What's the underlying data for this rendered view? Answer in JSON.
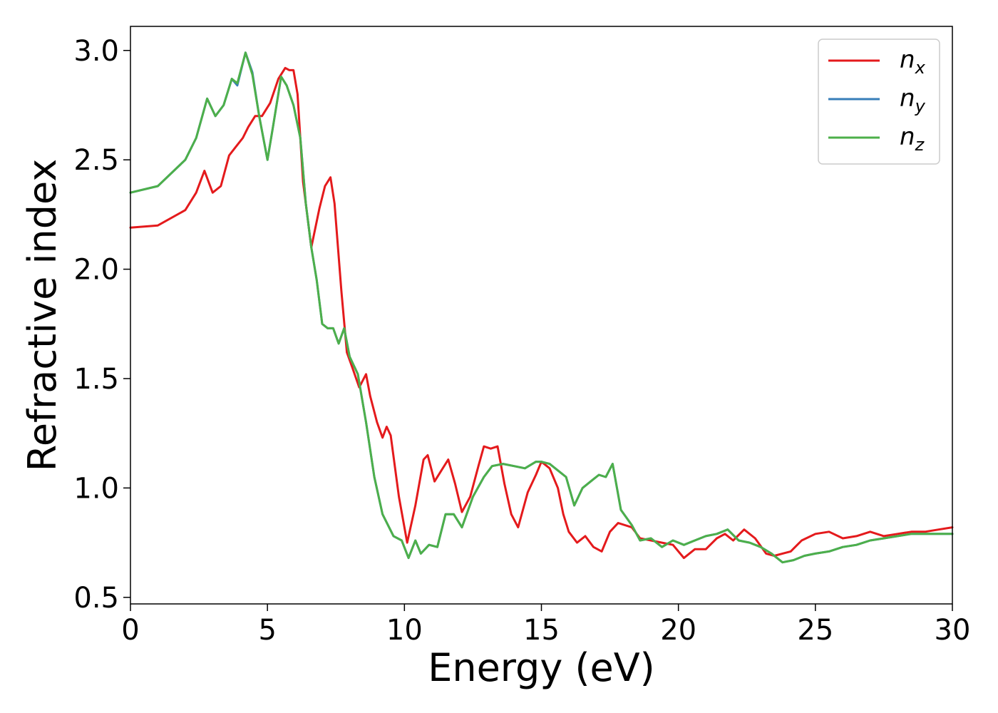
{
  "chart_data": {
    "type": "line",
    "title": "",
    "xlabel": "Energy (eV)",
    "ylabel": "Refractive index",
    "xlim": [
      0,
      30
    ],
    "ylim": [
      0.47,
      3.11
    ],
    "xticks": [
      0,
      5,
      10,
      15,
      20,
      25,
      30
    ],
    "xtick_labels": [
      "0",
      "5",
      "10",
      "15",
      "20",
      "25",
      "30"
    ],
    "yticks": [
      0.5,
      1.0,
      1.5,
      2.0,
      2.5,
      3.0
    ],
    "ytick_labels": [
      "0.5",
      "1.0",
      "1.5",
      "2.0",
      "2.5",
      "3.0"
    ],
    "grid": false,
    "legend_position": "top-right",
    "series": [
      {
        "name": "n_x",
        "legend_base": "n",
        "legend_sub": "x",
        "color": "#e41a1c",
        "x": [
          0,
          1,
          2,
          2.4,
          2.7,
          2.85,
          3.0,
          3.3,
          3.6,
          3.85,
          4.1,
          4.3,
          4.55,
          4.8,
          5.1,
          5.4,
          5.65,
          5.8,
          5.95,
          6.1,
          6.3,
          6.6,
          6.9,
          7.1,
          7.3,
          7.45,
          7.7,
          7.9,
          8.1,
          8.35,
          8.6,
          8.75,
          9.0,
          9.2,
          9.35,
          9.5,
          9.8,
          10.1,
          10.4,
          10.7,
          10.85,
          11.1,
          11.35,
          11.6,
          11.85,
          12.1,
          12.4,
          12.7,
          12.9,
          13.15,
          13.4,
          13.65,
          13.9,
          14.15,
          14.5,
          14.8,
          15.0,
          15.3,
          15.6,
          15.8,
          16.0,
          16.3,
          16.6,
          16.9,
          17.2,
          17.5,
          17.8,
          18.3,
          18.6,
          19.0,
          19.4,
          19.8,
          20.2,
          20.6,
          21.0,
          21.4,
          21.7,
          22.0,
          22.4,
          22.8,
          23.2,
          23.5,
          23.8,
          24.1,
          24.5,
          25.0,
          25.5,
          26.0,
          26.5,
          27.0,
          27.5,
          28.0,
          28.5,
          29.0,
          29.5,
          30
        ],
        "y": [
          2.19,
          2.2,
          2.27,
          2.35,
          2.45,
          2.4,
          2.35,
          2.38,
          2.52,
          2.56,
          2.6,
          2.65,
          2.7,
          2.7,
          2.76,
          2.87,
          2.92,
          2.91,
          2.91,
          2.8,
          2.4,
          2.1,
          2.28,
          2.38,
          2.42,
          2.3,
          1.9,
          1.62,
          1.55,
          1.46,
          1.52,
          1.42,
          1.3,
          1.23,
          1.28,
          1.24,
          0.96,
          0.75,
          0.92,
          1.13,
          1.15,
          1.03,
          1.08,
          1.13,
          1.02,
          0.89,
          0.96,
          1.1,
          1.19,
          1.18,
          1.19,
          1.02,
          0.88,
          0.82,
          0.98,
          1.06,
          1.12,
          1.09,
          1.0,
          0.88,
          0.8,
          0.75,
          0.78,
          0.73,
          0.71,
          0.8,
          0.84,
          0.82,
          0.77,
          0.76,
          0.75,
          0.74,
          0.68,
          0.72,
          0.72,
          0.77,
          0.79,
          0.76,
          0.81,
          0.77,
          0.7,
          0.69,
          0.7,
          0.71,
          0.76,
          0.79,
          0.8,
          0.77,
          0.78,
          0.8,
          0.78,
          0.79,
          0.8,
          0.8,
          0.81,
          0.82
        ]
      },
      {
        "name": "n_y",
        "legend_base": "n",
        "legend_sub": "y",
        "color": "#377eb8",
        "x": [
          0,
          1,
          2,
          2.4,
          2.8,
          3.1,
          3.4,
          3.7,
          3.9,
          4.2,
          4.45,
          4.7,
          5.0,
          5.2,
          5.5,
          5.7,
          5.95,
          6.2,
          6.4,
          6.6,
          6.8,
          7.0,
          7.2,
          7.4,
          7.6,
          7.8,
          8.0,
          8.3,
          8.6,
          8.9,
          9.2,
          9.6,
          9.9,
          10.15,
          10.4,
          10.6,
          10.9,
          11.2,
          11.5,
          11.8,
          12.1,
          12.5,
          12.9,
          13.2,
          13.6,
          14.0,
          14.4,
          14.8,
          15.0,
          15.3,
          15.6,
          15.9,
          16.2,
          16.5,
          16.9,
          17.1,
          17.35,
          17.6,
          17.9,
          18.3,
          18.6,
          19.0,
          19.4,
          19.8,
          20.2,
          20.6,
          21.0,
          21.4,
          21.8,
          22.2,
          22.6,
          23.0,
          23.4,
          23.8,
          24.2,
          24.6,
          25.0,
          25.5,
          26.0,
          26.5,
          27.0,
          27.5,
          28.0,
          28.5,
          29.0,
          29.5,
          30
        ],
        "y": [
          2.35,
          2.38,
          2.5,
          2.6,
          2.78,
          2.7,
          2.75,
          2.87,
          2.84,
          2.99,
          2.9,
          2.7,
          2.5,
          2.65,
          2.88,
          2.84,
          2.75,
          2.6,
          2.3,
          2.1,
          1.95,
          1.75,
          1.73,
          1.73,
          1.66,
          1.73,
          1.6,
          1.52,
          1.3,
          1.05,
          0.88,
          0.78,
          0.76,
          0.68,
          0.76,
          0.7,
          0.74,
          0.73,
          0.88,
          0.88,
          0.82,
          0.96,
          1.05,
          1.1,
          1.11,
          1.1,
          1.09,
          1.12,
          1.12,
          1.11,
          1.08,
          1.05,
          0.92,
          1.0,
          1.04,
          1.06,
          1.05,
          1.11,
          0.9,
          0.83,
          0.76,
          0.77,
          0.73,
          0.76,
          0.74,
          0.76,
          0.78,
          0.79,
          0.81,
          0.76,
          0.75,
          0.73,
          0.7,
          0.66,
          0.67,
          0.69,
          0.7,
          0.71,
          0.73,
          0.74,
          0.76,
          0.77,
          0.78,
          0.79,
          0.79,
          0.79,
          0.79
        ]
      },
      {
        "name": "n_z",
        "legend_base": "n",
        "legend_sub": "z",
        "color": "#4daf4a",
        "x": [
          0,
          1,
          2,
          2.4,
          2.8,
          3.1,
          3.4,
          3.7,
          3.9,
          4.2,
          4.45,
          4.7,
          5.0,
          5.2,
          5.5,
          5.7,
          5.95,
          6.2,
          6.4,
          6.6,
          6.8,
          7.0,
          7.2,
          7.4,
          7.6,
          7.8,
          8.0,
          8.3,
          8.6,
          8.9,
          9.2,
          9.6,
          9.9,
          10.15,
          10.4,
          10.6,
          10.9,
          11.2,
          11.5,
          11.8,
          12.1,
          12.5,
          12.9,
          13.2,
          13.6,
          14.0,
          14.4,
          14.8,
          15.0,
          15.3,
          15.6,
          15.9,
          16.2,
          16.5,
          16.9,
          17.1,
          17.35,
          17.6,
          17.9,
          18.3,
          18.6,
          19.0,
          19.4,
          19.8,
          20.2,
          20.6,
          21.0,
          21.4,
          21.8,
          22.2,
          22.6,
          23.0,
          23.4,
          23.8,
          24.2,
          24.6,
          25.0,
          25.5,
          26.0,
          26.5,
          27.0,
          27.5,
          28.0,
          28.5,
          29.0,
          29.5,
          30
        ],
        "y": [
          2.35,
          2.38,
          2.5,
          2.6,
          2.78,
          2.7,
          2.75,
          2.87,
          2.85,
          2.99,
          2.89,
          2.7,
          2.5,
          2.65,
          2.88,
          2.84,
          2.75,
          2.6,
          2.3,
          2.1,
          1.95,
          1.75,
          1.73,
          1.73,
          1.66,
          1.73,
          1.6,
          1.52,
          1.3,
          1.05,
          0.88,
          0.78,
          0.76,
          0.68,
          0.76,
          0.7,
          0.74,
          0.73,
          0.88,
          0.88,
          0.82,
          0.96,
          1.05,
          1.1,
          1.11,
          1.1,
          1.09,
          1.12,
          1.12,
          1.11,
          1.08,
          1.05,
          0.92,
          1.0,
          1.04,
          1.06,
          1.05,
          1.11,
          0.9,
          0.83,
          0.76,
          0.77,
          0.73,
          0.76,
          0.74,
          0.76,
          0.78,
          0.79,
          0.81,
          0.76,
          0.75,
          0.73,
          0.7,
          0.66,
          0.67,
          0.69,
          0.7,
          0.71,
          0.73,
          0.74,
          0.76,
          0.77,
          0.78,
          0.79,
          0.79,
          0.79,
          0.79
        ]
      }
    ]
  }
}
